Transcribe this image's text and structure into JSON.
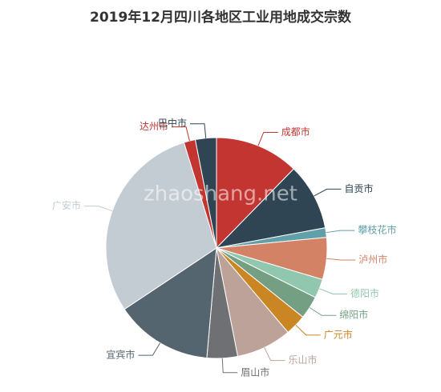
{
  "chart_data": {
    "type": "pie",
    "title": "2019年12月四川各地区工业用地成交宗数",
    "watermark": "zhaoshang.net",
    "categories": [
      "成都市",
      "自贡市",
      "攀枝花市",
      "泸州市",
      "德阳市",
      "绵阳市",
      "广元市",
      "乐山市",
      "眉山市",
      "宜宾市",
      "广安市",
      "达州市",
      "巴中市"
    ],
    "values": [
      44,
      35,
      5,
      22,
      10,
      12,
      11,
      29,
      16,
      51,
      106,
      6,
      11
    ],
    "colors": [
      "#c23531",
      "#2f4554",
      "#61a0a8",
      "#d48265",
      "#91c7ae",
      "#749f83",
      "#ca8622",
      "#bda29a",
      "#6e7074",
      "#546570",
      "#c4ccd3",
      "#c23531",
      "#2f4554"
    ]
  }
}
